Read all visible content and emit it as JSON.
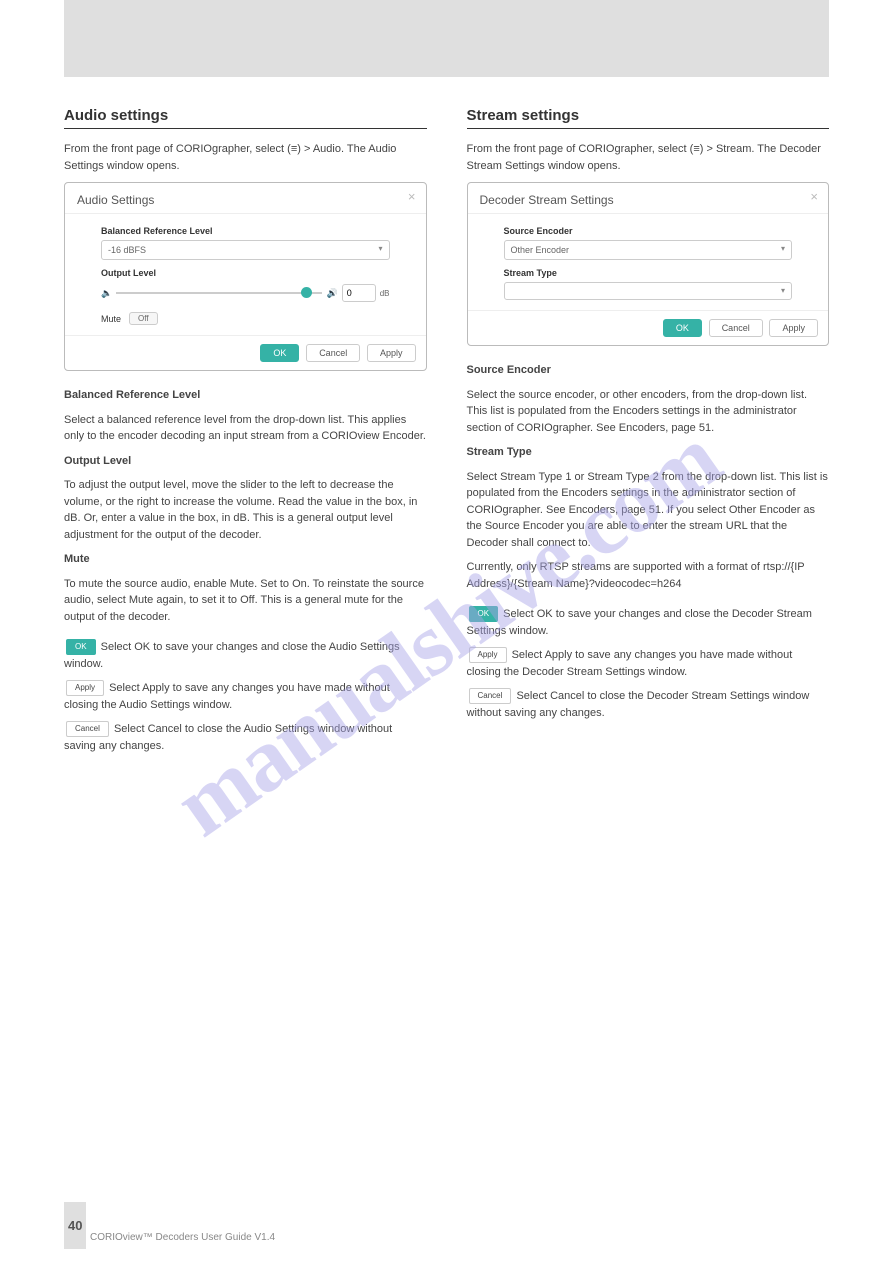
{
  "colors": {
    "accent": "#35b2a6",
    "header_gray": "#dfdfdf",
    "watermark": "#a8a4e8",
    "text": "#333333",
    "muted": "#888888",
    "border": "#cccccc"
  },
  "watermark": "manualshive.com",
  "page_number": "40",
  "footer_text": "CORIOview™ Decoders User Guide V1.4",
  "left": {
    "section_title": "Audio settings",
    "intro_text": "From the front page of CORIOgrapher, select (≡) > Audio. The Audio Settings window opens.",
    "dialog": {
      "title": "Audio Settings",
      "balanced_label": "Balanced Reference Level",
      "balanced_value": "-16 dBFS",
      "output_label": "Output Level",
      "output_value": "0",
      "output_unit": "dB",
      "mute_label": "Mute",
      "mute_value": "Off",
      "ok": "OK",
      "cancel": "Cancel",
      "apply": "Apply"
    },
    "balanced_desc_title": "Balanced Reference Level",
    "balanced_desc": "Select a balanced reference level from the drop-down list. This applies only to the encoder decoding an input stream from a CORIOview Encoder.",
    "output_desc_title": "Output Level",
    "output_desc": "To adjust the output level, move the slider to the left to decrease the volume, or the right to increase the volume. Read the value in the box, in dB. Or, enter a value in the box, in dB. This is a general output level adjustment for the output of the decoder.",
    "mute_desc_title": "Mute",
    "mute_desc": "To mute the source audio, enable Mute. Set to On. To reinstate the source audio, select Mute again, to set it to Off. This is a general mute for the output of the decoder.",
    "actions": {
      "ok_label": "OK",
      "ok_desc": "Select OK to save your changes and close the Audio Settings window.",
      "apply_label": "Apply",
      "apply_desc": "Select Apply to save any changes you have made without closing the Audio Settings window.",
      "cancel_label": "Cancel",
      "cancel_desc": "Select Cancel to close the Audio Settings window without saving any changes."
    }
  },
  "right": {
    "section_title": "Stream settings",
    "intro_text": "From the front page of CORIOgrapher, select (≡) > Stream. The Decoder Stream Settings window opens.",
    "dialog": {
      "title": "Decoder Stream Settings",
      "source_label": "Source Encoder",
      "source_value": "Other Encoder",
      "stream_label": "Stream Type",
      "stream_value": "",
      "ok": "OK",
      "cancel": "Cancel",
      "apply": "Apply"
    },
    "source_desc_title": "Source Encoder",
    "source_desc": "Select the source encoder, or other encoders, from the drop-down list. This list is populated from the Encoders settings in the administrator section of CORIOgrapher. See Encoders, page 51.",
    "stream_desc_title": "Stream Type",
    "stream_desc": "Select Stream Type 1 or Stream Type 2 from the drop-down list. This list is populated from the Encoders settings in the administrator section of CORIOgrapher. See Encoders, page 51. If you select Other Encoder as the Source Encoder you are able to enter the stream URL that the Decoder shall connect to.",
    "stream_desc2": "Currently, only RTSP streams are supported with a format of rtsp://{IP Address}/{Stream Name}?videocodec=h264",
    "actions": {
      "ok_label": "OK",
      "ok_desc": "Select OK to save your changes and close the Decoder Stream Settings window.",
      "apply_label": "Apply",
      "apply_desc": "Select Apply to save any changes you have made without closing the Decoder Stream Settings window.",
      "cancel_label": "Cancel",
      "cancel_desc": "Select Cancel to close the Decoder Stream Settings window without saving any changes."
    }
  }
}
